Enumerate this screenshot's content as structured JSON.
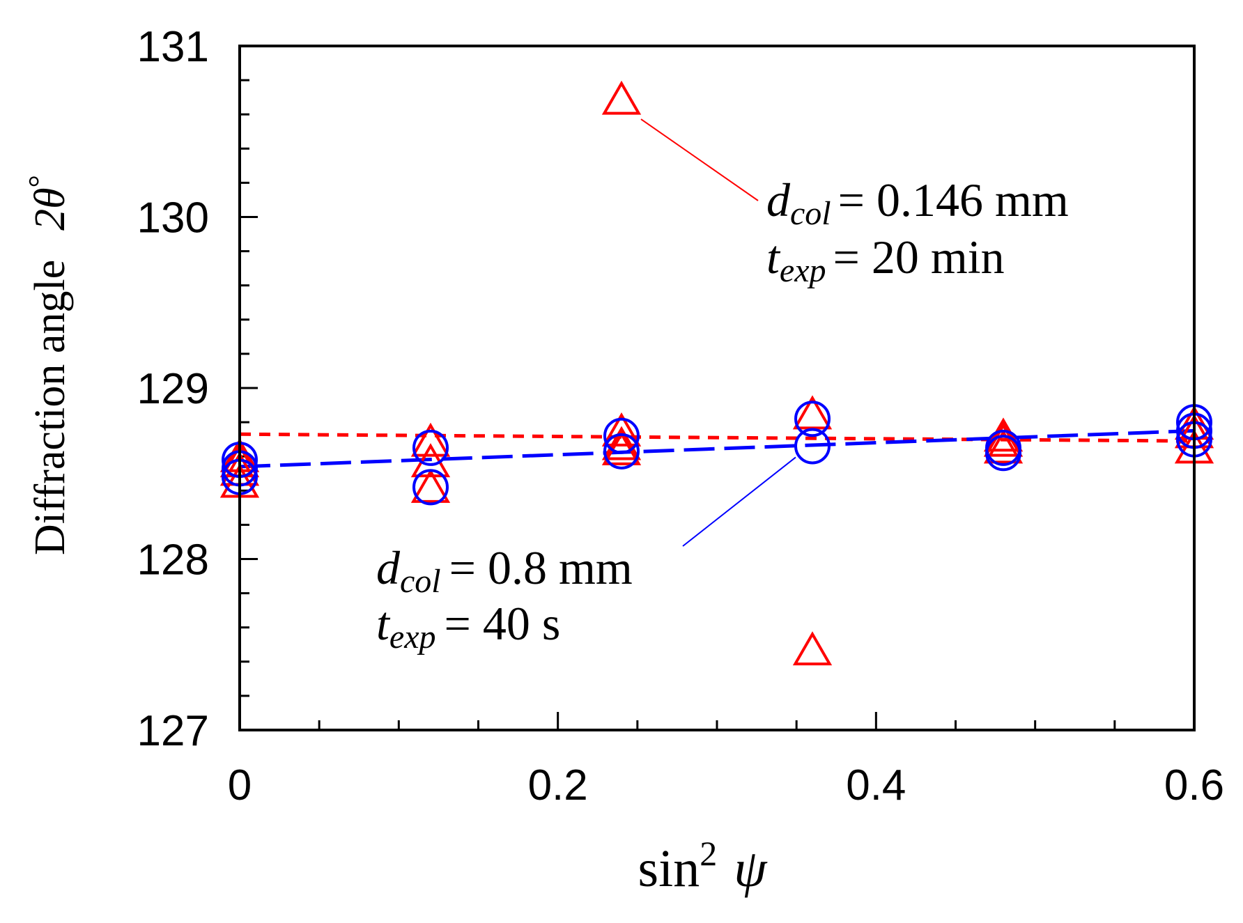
{
  "chart_data": {
    "type": "scatter",
    "title": "",
    "xlabel": "sin",
    "xlabel_sup": "2",
    "xlabel_symbol": "ψ",
    "ylabel": "Diffraction angle",
    "ylabel_symbol": "2θ",
    "ylabel_unit": "°",
    "xlim": [
      0,
      0.6
    ],
    "ylim": [
      127,
      131
    ],
    "x_ticks": [
      "0",
      "0.2",
      "0.4",
      "0.6"
    ],
    "y_ticks": [
      "127",
      "128",
      "129",
      "130",
      "131"
    ],
    "grid": false,
    "series": [
      {
        "name": "d_col = 0.146 mm, t_exp = 20 min",
        "marker": "triangle",
        "color": "#ff0000",
        "x": [
          0,
          0,
          0,
          0,
          0.12,
          0.12,
          0.12,
          0.24,
          0.24,
          0.24,
          0.24,
          0.36,
          0.36,
          0.48,
          0.48,
          0.48,
          0.6,
          0.6,
          0.6
        ],
        "y": [
          128.43,
          128.5,
          128.55,
          128.58,
          128.4,
          128.55,
          128.67,
          130.67,
          128.73,
          128.65,
          128.62,
          128.83,
          127.45,
          128.7,
          128.67,
          128.63,
          128.63,
          128.72,
          128.77
        ],
        "fit": {
          "x": [
            0,
            0.6
          ],
          "y": [
            128.73,
            128.69
          ]
        }
      },
      {
        "name": "d_col = 0.8 mm, t_exp = 40 s",
        "marker": "circle",
        "color": "#0000ff",
        "x": [
          0,
          0,
          0,
          0.12,
          0.12,
          0.24,
          0.24,
          0.36,
          0.36,
          0.48,
          0.48,
          0.6,
          0.6,
          0.6
        ],
        "y": [
          128.58,
          128.53,
          128.48,
          128.65,
          128.42,
          128.72,
          128.63,
          128.82,
          128.66,
          128.65,
          128.62,
          128.8,
          128.75,
          128.7
        ],
        "fit": {
          "x": [
            0,
            0.6
          ],
          "y": [
            128.54,
            128.75
          ]
        }
      }
    ],
    "annotations": [
      {
        "series": 0,
        "var": "d",
        "sub": "col",
        "eq": "= 0.146 mm",
        "var2": "t",
        "sub2": "exp",
        "eq2": "= 20 min",
        "points_to": [
          0.24,
          130.67
        ]
      },
      {
        "series": 1,
        "var": "d",
        "sub": "col",
        "eq": "= 0.8 mm",
        "var2": "t",
        "sub2": "exp",
        "eq2": "= 40 s",
        "points_to": [
          0.36,
          128.66
        ]
      }
    ]
  }
}
